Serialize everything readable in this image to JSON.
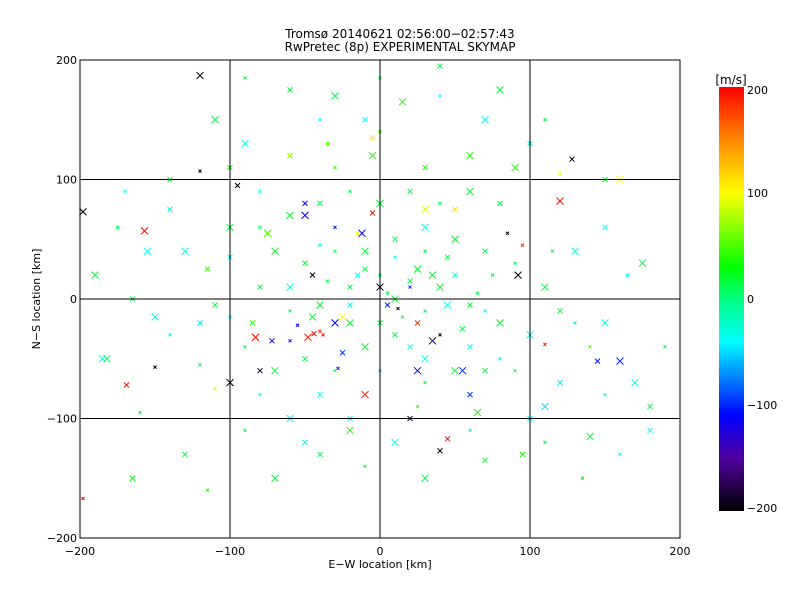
{
  "chart_data": {
    "type": "scatter",
    "title": "Tromsø 20140621 02:56:00−02:57:43",
    "subtitle": "RwPretec (8p) EXPERIMENTAL SKYMAP",
    "xlabel": "E−W location [km]",
    "ylabel": "N−S location [km]",
    "xlim": [
      -200,
      200
    ],
    "ylim": [
      -200,
      200
    ],
    "xticks": [
      "−200",
      "−100",
      "0",
      "100",
      "200"
    ],
    "yticks": [
      "−200",
      "−100",
      "0",
      "100",
      "200"
    ],
    "xtick_values": [
      -200,
      -100,
      0,
      100,
      200
    ],
    "ytick_values": [
      -200,
      -100,
      0,
      100,
      200
    ],
    "grid": true,
    "colorbar": {
      "label": "[m/s]",
      "range": [
        -200,
        200
      ],
      "ticks": [
        "200",
        "100",
        "0",
        "−100",
        "−200"
      ],
      "tick_values": [
        200,
        100,
        0,
        -100,
        -200
      ],
      "stops": [
        {
          "v": 200,
          "color": "#ff0000"
        },
        {
          "v": 150,
          "color": "#ff8800"
        },
        {
          "v": 100,
          "color": "#ffff00"
        },
        {
          "v": 30,
          "color": "#00ff00"
        },
        {
          "v": 0,
          "color": "#00ff80"
        },
        {
          "v": -40,
          "color": "#00ffff"
        },
        {
          "v": -110,
          "color": "#0000ff"
        },
        {
          "v": -150,
          "color": "#5000a0"
        },
        {
          "v": -200,
          "color": "#000000"
        }
      ]
    },
    "points_format": [
      "x_km",
      "y_km",
      "velocity_m_s"
    ],
    "points": [
      [
        -157,
        57,
        195
      ],
      [
        -169,
        -72,
        195
      ],
      [
        -198,
        -167,
        200
      ],
      [
        -48,
        -32,
        190
      ],
      [
        -44,
        -29,
        195
      ],
      [
        -40,
        -27,
        185
      ],
      [
        -83,
        -32,
        195
      ],
      [
        45,
        -117,
        195
      ],
      [
        110,
        -38,
        190
      ],
      [
        120,
        82,
        195
      ],
      [
        -5,
        72,
        190
      ],
      [
        95,
        45,
        185
      ],
      [
        -10,
        -80,
        190
      ],
      [
        25,
        -20,
        180
      ],
      [
        -38,
        -30,
        190
      ],
      [
        -120,
        187,
        -200
      ],
      [
        -95,
        95,
        -200
      ],
      [
        -150,
        -57,
        -200
      ],
      [
        -100,
        -70,
        -200
      ],
      [
        128,
        117,
        -200
      ],
      [
        85,
        55,
        -195
      ],
      [
        92,
        20,
        -200
      ],
      [
        40,
        -127,
        -200
      ],
      [
        12,
        -8,
        -195
      ],
      [
        35,
        -35,
        -195
      ],
      [
        -45,
        20,
        -200
      ],
      [
        -120,
        107,
        -200
      ],
      [
        -198,
        73,
        -200
      ],
      [
        -80,
        -60,
        -190
      ],
      [
        40,
        -30,
        -195
      ],
      [
        0,
        10,
        -190
      ],
      [
        20,
        -100,
        -180
      ],
      [
        -28,
        -58,
        -110
      ],
      [
        160,
        -52,
        -100
      ],
      [
        145,
        -52,
        -105
      ],
      [
        -55,
        -22,
        -110
      ],
      [
        -50,
        70,
        -110
      ],
      [
        -50,
        80,
        -120
      ],
      [
        35,
        -35,
        -100
      ],
      [
        25,
        -60,
        -110
      ],
      [
        60,
        -80,
        -95
      ],
      [
        -60,
        -35,
        -105
      ],
      [
        55,
        -60,
        -100
      ],
      [
        -72,
        -35,
        -120
      ],
      [
        20,
        10,
        -100
      ],
      [
        -12,
        55,
        -110
      ],
      [
        5,
        -5,
        -100
      ],
      [
        -30,
        60,
        -105
      ],
      [
        -30,
        -20,
        -110
      ],
      [
        -25,
        -45,
        -95
      ],
      [
        -140,
        -30,
        -40
      ],
      [
        -185,
        -50,
        -35
      ],
      [
        -120,
        -20,
        -45
      ],
      [
        -100,
        -15,
        -40
      ],
      [
        -150,
        -15,
        -30
      ],
      [
        -100,
        35,
        -40
      ],
      [
        -80,
        90,
        -35
      ],
      [
        -130,
        40,
        -30
      ],
      [
        -20,
        -100,
        -40
      ],
      [
        0,
        -60,
        -45
      ],
      [
        30,
        -50,
        -40
      ],
      [
        60,
        -40,
        -40
      ],
      [
        80,
        -50,
        -35
      ],
      [
        100,
        -30,
        -40
      ],
      [
        120,
        -70,
        -45
      ],
      [
        150,
        -80,
        -30
      ],
      [
        170,
        -70,
        -40
      ],
      [
        180,
        -110,
        -35
      ],
      [
        160,
        -130,
        -40
      ],
      [
        110,
        -90,
        -50
      ],
      [
        100,
        -100,
        -35
      ],
      [
        60,
        -110,
        -40
      ],
      [
        10,
        -120,
        -40
      ],
      [
        -50,
        -120,
        -35
      ],
      [
        -80,
        -80,
        -40
      ],
      [
        -60,
        -100,
        -35
      ],
      [
        -40,
        -80,
        -40
      ],
      [
        130,
        -20,
        -35
      ],
      [
        150,
        -20,
        -40
      ],
      [
        -10,
        150,
        -40
      ],
      [
        40,
        170,
        -35
      ],
      [
        70,
        150,
        -40
      ],
      [
        100,
        130,
        -30
      ],
      [
        -40,
        150,
        -35
      ],
      [
        -90,
        130,
        -40
      ],
      [
        -140,
        75,
        -30
      ],
      [
        -170,
        90,
        -40
      ],
      [
        -155,
        40,
        -35
      ],
      [
        150,
        60,
        -40
      ],
      [
        165,
        20,
        -35
      ],
      [
        130,
        40,
        -30
      ],
      [
        -15,
        20,
        -35
      ],
      [
        10,
        35,
        -40
      ],
      [
        30,
        60,
        -35
      ],
      [
        50,
        20,
        -40
      ],
      [
        -40,
        45,
        -30
      ],
      [
        -60,
        10,
        -35
      ],
      [
        -20,
        -5,
        -40
      ],
      [
        70,
        -10,
        -35
      ],
      [
        45,
        -5,
        -40
      ],
      [
        20,
        -40,
        -35
      ],
      [
        -160,
        -95,
        15
      ],
      [
        -182,
        -50,
        10
      ],
      [
        -130,
        -130,
        10
      ],
      [
        -90,
        -110,
        15
      ],
      [
        -70,
        -150,
        20
      ],
      [
        -40,
        -130,
        10
      ],
      [
        -10,
        -140,
        15
      ],
      [
        30,
        -150,
        10
      ],
      [
        70,
        -135,
        20
      ],
      [
        110,
        -120,
        10
      ],
      [
        140,
        -115,
        15
      ],
      [
        180,
        -90,
        10
      ],
      [
        190,
        -40,
        15
      ],
      [
        175,
        30,
        10
      ],
      [
        150,
        100,
        15
      ],
      [
        110,
        150,
        10
      ],
      [
        80,
        175,
        15
      ],
      [
        40,
        195,
        10
      ],
      [
        0,
        185,
        15
      ],
      [
        -30,
        170,
        10
      ],
      [
        -60,
        175,
        15
      ],
      [
        -90,
        185,
        20
      ],
      [
        -110,
        150,
        10
      ],
      [
        -140,
        100,
        15
      ],
      [
        -175,
        60,
        10
      ],
      [
        -190,
        20,
        15
      ],
      [
        -165,
        0,
        10
      ],
      [
        -60,
        -10,
        10
      ],
      [
        -40,
        -5,
        20
      ],
      [
        -20,
        10,
        15
      ],
      [
        0,
        20,
        10
      ],
      [
        10,
        0,
        20
      ],
      [
        20,
        15,
        15
      ],
      [
        30,
        -10,
        10
      ],
      [
        40,
        10,
        20
      ],
      [
        55,
        -25,
        15
      ],
      [
        65,
        5,
        10
      ],
      [
        80,
        -20,
        20
      ],
      [
        -80,
        10,
        15
      ],
      [
        -90,
        -40,
        10
      ],
      [
        -70,
        -60,
        20
      ],
      [
        -50,
        -50,
        15
      ],
      [
        -30,
        -60,
        10
      ],
      [
        -10,
        -40,
        20
      ],
      [
        10,
        -30,
        15
      ],
      [
        30,
        -70,
        10
      ],
      [
        50,
        -60,
        20
      ],
      [
        70,
        -60,
        15
      ],
      [
        90,
        -60,
        10
      ],
      [
        -70,
        40,
        20
      ],
      [
        -50,
        30,
        15
      ],
      [
        -30,
        40,
        10
      ],
      [
        -10,
        40,
        20
      ],
      [
        10,
        50,
        15
      ],
      [
        30,
        40,
        10
      ],
      [
        50,
        50,
        20
      ],
      [
        70,
        40,
        15
      ],
      [
        90,
        30,
        10
      ],
      [
        -60,
        70,
        20
      ],
      [
        -40,
        80,
        15
      ],
      [
        -20,
        90,
        10
      ],
      [
        0,
        80,
        20
      ],
      [
        20,
        90,
        15
      ],
      [
        40,
        80,
        10
      ],
      [
        60,
        90,
        20
      ],
      [
        80,
        80,
        15
      ],
      [
        -80,
        60,
        10
      ],
      [
        -100,
        60,
        20
      ],
      [
        -110,
        -5,
        15
      ],
      [
        -120,
        -55,
        10
      ],
      [
        110,
        10,
        20
      ],
      [
        120,
        -10,
        15
      ],
      [
        115,
        40,
        10
      ],
      [
        -20,
        -20,
        20
      ],
      [
        0,
        -20,
        15
      ],
      [
        15,
        -15,
        10
      ],
      [
        25,
        25,
        20
      ],
      [
        -10,
        25,
        15
      ],
      [
        5,
        5,
        10
      ],
      [
        35,
        20,
        20
      ],
      [
        45,
        35,
        15
      ],
      [
        -35,
        15,
        10
      ],
      [
        -45,
        -15,
        20
      ],
      [
        60,
        -5,
        15
      ],
      [
        75,
        20,
        10
      ],
      [
        -5,
        120,
        40
      ],
      [
        30,
        110,
        35
      ],
      [
        -30,
        110,
        45
      ],
      [
        60,
        120,
        40
      ],
      [
        -60,
        120,
        35
      ],
      [
        0,
        140,
        45
      ],
      [
        90,
        110,
        40
      ],
      [
        -100,
        110,
        35
      ],
      [
        -35,
        130,
        45
      ],
      [
        15,
        165,
        40
      ],
      [
        -5,
        135,
        110
      ],
      [
        -15,
        55,
        100
      ],
      [
        30,
        75,
        90
      ],
      [
        -60,
        120,
        80
      ],
      [
        120,
        105,
        95
      ],
      [
        -25,
        -15,
        100
      ],
      [
        50,
        75,
        110
      ],
      [
        -110,
        -75,
        90
      ],
      [
        160,
        100,
        100
      ],
      [
        -165,
        -150,
        30
      ],
      [
        -115,
        -160,
        35
      ],
      [
        -20,
        -110,
        40
      ],
      [
        95,
        -130,
        35
      ],
      [
        135,
        -150,
        30
      ],
      [
        -75,
        55,
        50
      ],
      [
        -85,
        -20,
        45
      ],
      [
        25,
        -90,
        50
      ],
      [
        65,
        -95,
        40
      ],
      [
        -115,
        25,
        45
      ],
      [
        140,
        -40,
        50
      ]
    ]
  }
}
